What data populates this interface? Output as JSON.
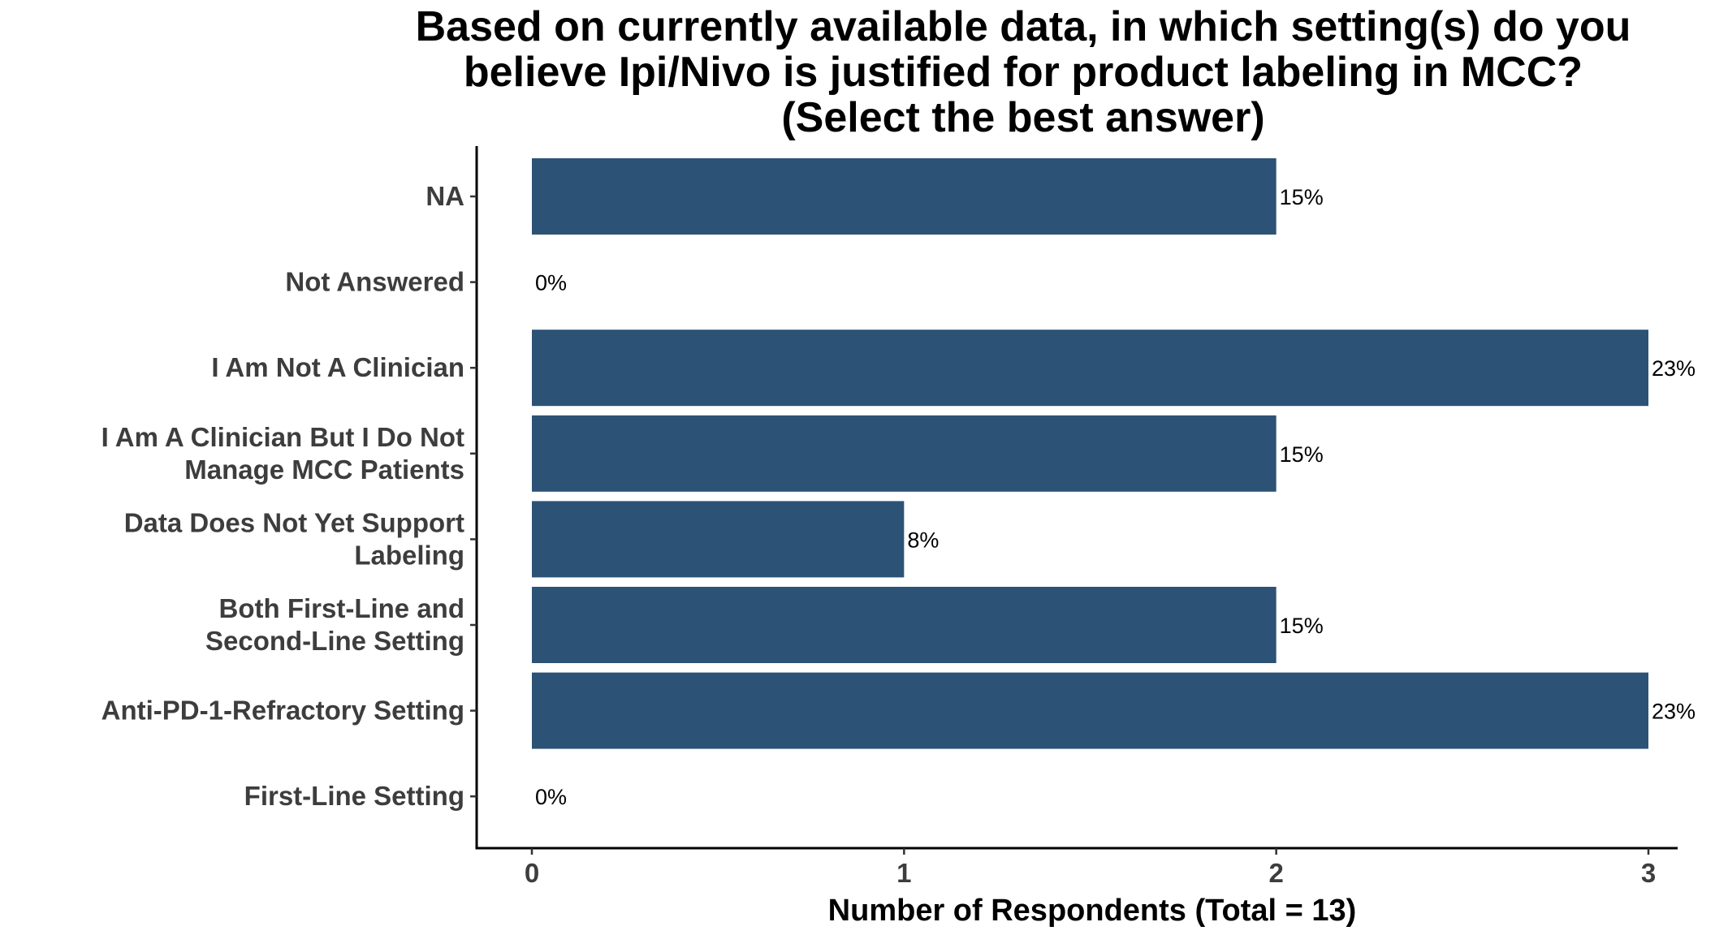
{
  "chart_data": {
    "type": "bar",
    "orientation": "horizontal",
    "title": [
      "Based on currently available data, in which setting(s) do you",
      "believe Ipi/Nivo is justified for product labeling in MCC?",
      "(Select the best answer)"
    ],
    "xlabel": "Number of Respondents (Total = 13)",
    "ylabel": "",
    "categories": [
      [
        "NA"
      ],
      [
        "Not Answered"
      ],
      [
        "I Am Not A Clinician"
      ],
      [
        "I Am A Clinician But I Do Not",
        "Manage MCC Patients"
      ],
      [
        "Data Does Not Yet Support",
        "Labeling"
      ],
      [
        "Both First-Line and",
        "Second-Line Setting"
      ],
      [
        "Anti-PD-1-Refractory Setting"
      ],
      [
        "First-Line Setting"
      ]
    ],
    "values": [
      2,
      0,
      3,
      2,
      1,
      2,
      3,
      0
    ],
    "labels": [
      "15%",
      "0%",
      "23%",
      "15%",
      "8%",
      "15%",
      "23%",
      "0%"
    ],
    "xlim": [
      0,
      3
    ],
    "xticks": [
      "0",
      "1",
      "2",
      "3"
    ],
    "grid": false,
    "legend": "none",
    "colors": {
      "bar": "#2c5276",
      "axis": "#000000",
      "text": "#3d3d3d"
    }
  }
}
